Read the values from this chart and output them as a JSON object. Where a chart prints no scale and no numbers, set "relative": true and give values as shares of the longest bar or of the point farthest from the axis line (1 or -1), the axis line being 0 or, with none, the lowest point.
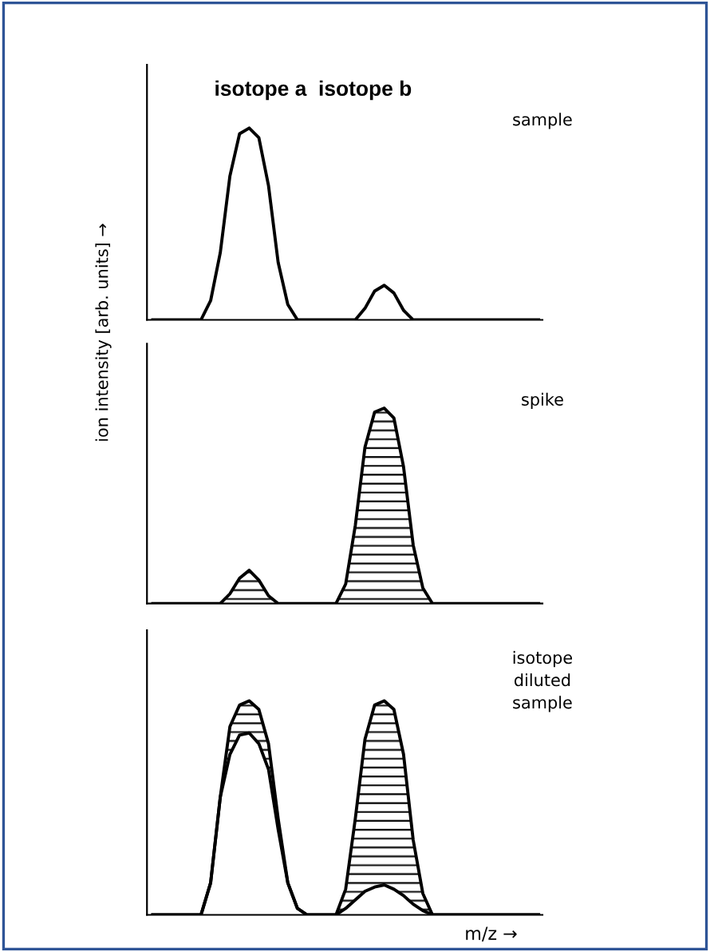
{
  "chart_data": [
    {
      "type": "line",
      "relative": true,
      "title": "isotope a  isotope b",
      "ylabel": "ion intensity [arb. units] →",
      "annotations": [
        "sample"
      ],
      "categories": [
        null,
        null,
        null,
        null,
        null,
        null,
        null,
        null,
        null,
        null,
        null,
        null,
        null,
        null,
        null,
        null,
        null,
        null,
        null,
        null,
        null,
        null,
        null,
        null,
        null,
        null,
        null,
        null,
        null,
        null,
        null,
        null,
        null,
        null,
        null,
        null,
        null,
        null,
        null,
        null,
        null
      ],
      "series": [
        {
          "color": "#000000",
          "values": [
            0,
            0,
            0,
            0,
            0,
            0,
            0.1,
            0.35,
            0.75,
            0.97,
            1,
            0.95,
            0.7,
            0.3,
            0.08,
            0,
            0,
            0,
            0,
            0,
            0,
            0,
            0.06,
            0.15,
            0.18,
            0.14,
            0.05,
            0,
            0,
            0,
            0,
            0,
            0,
            0,
            0,
            0,
            0,
            0,
            0,
            0,
            0
          ]
        }
      ]
    },
    {
      "type": "area",
      "relative": true,
      "annotations": [
        "spike"
      ],
      "categories": [
        null,
        null,
        null,
        null,
        null,
        null,
        null,
        null,
        null,
        null,
        null,
        null,
        null,
        null,
        null,
        null,
        null,
        null,
        null,
        null,
        null,
        null,
        null,
        null,
        null,
        null,
        null,
        null,
        null,
        null,
        null,
        null,
        null,
        null,
        null,
        null,
        null,
        null,
        null,
        null,
        null
      ],
      "series": [
        {
          "color": "#000000",
          "values": [
            0,
            0,
            0,
            0,
            0,
            0,
            0,
            0,
            0.05,
            0.13,
            0.17,
            0.12,
            0.04,
            0,
            0,
            0,
            0,
            0,
            0,
            0,
            0.1,
            0.4,
            0.8,
            0.98,
            1,
            0.95,
            0.7,
            0.3,
            0.08,
            0,
            0,
            0,
            0,
            0,
            0,
            0,
            0,
            0,
            0,
            0,
            0
          ]
        }
      ]
    },
    {
      "type": "area",
      "relative": true,
      "xlabel": "m/z →",
      "annotations": [
        "isotope\ndiluted\nsample"
      ],
      "categories": [
        null,
        null,
        null,
        null,
        null,
        null,
        null,
        null,
        null,
        null,
        null,
        null,
        null,
        null,
        null,
        null,
        null,
        null,
        null,
        null,
        null,
        null,
        null,
        null,
        null,
        null,
        null,
        null,
        null,
        null,
        null,
        null,
        null,
        null,
        null,
        null,
        null,
        null,
        null,
        null,
        null
      ],
      "series": [
        {
          "color": "#000000",
          "values": [
            0,
            0,
            0,
            0,
            0,
            0,
            0.15,
            0.55,
            0.88,
            0.98,
            1,
            0.96,
            0.8,
            0.45,
            0.15,
            0.03,
            0,
            0,
            0,
            0,
            0.12,
            0.45,
            0.82,
            0.98,
            1,
            0.96,
            0.75,
            0.35,
            0.1,
            0,
            0,
            0,
            0,
            0,
            0,
            0,
            0,
            0,
            0,
            0,
            0
          ]
        },
        {
          "type": "line",
          "color": "#000000",
          "values": [
            0,
            0,
            0,
            0,
            0,
            0,
            0.15,
            0.55,
            0.75,
            0.84,
            0.85,
            0.8,
            0.68,
            0.4,
            0.15,
            0.03,
            0,
            0,
            0,
            0,
            0.03,
            0.07,
            0.11,
            0.13,
            0.14,
            0.12,
            0.09,
            0.05,
            0.02,
            0,
            0,
            0,
            0,
            0,
            0,
            0,
            0,
            0,
            0,
            0,
            0
          ]
        }
      ]
    }
  ]
}
